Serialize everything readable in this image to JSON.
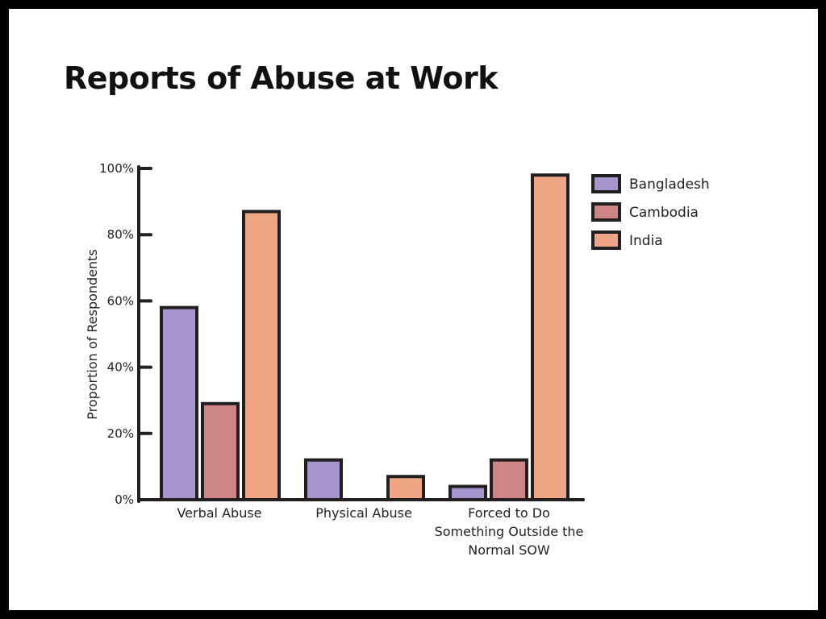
{
  "chart_data": {
    "type": "bar",
    "title": "Reports of Abuse at Work",
    "ylabel": "Proportion of Respondents",
    "xlabel": "",
    "ylim": [
      0,
      100
    ],
    "yticks": [
      "0%",
      "20%",
      "40%",
      "60%",
      "80%",
      "100%"
    ],
    "ytick_values": [
      0,
      20,
      40,
      60,
      80,
      100
    ],
    "categories": [
      [
        "Verbal Abuse"
      ],
      [
        "Physical Abuse"
      ],
      [
        "Forced to Do",
        "Something Outside the",
        "Normal SOW"
      ]
    ],
    "series": [
      {
        "name": "Bangladesh",
        "color": "#a794cf",
        "values": [
          58,
          12,
          4
        ]
      },
      {
        "name": "Cambodia",
        "color": "#cf8586",
        "values": [
          29,
          0,
          12
        ]
      },
      {
        "name": "India",
        "color": "#eea684",
        "values": [
          87,
          7,
          98
        ]
      }
    ],
    "legend_position": "right",
    "grid": false,
    "bar_outline_color": "#231f20"
  }
}
